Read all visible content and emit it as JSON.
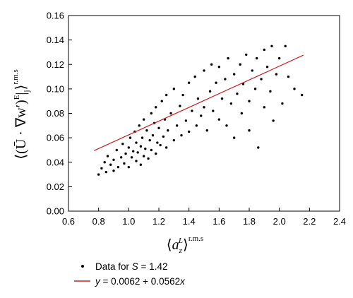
{
  "chart_data": {
    "type": "scatter",
    "title": "",
    "xlabel": "⟨a_z^L⟩ r.m.s",
    "ylabel": "⟨⟨(Ū · ∇w′)^E⟩|_j⟩ r.m.s",
    "xlim": [
      0.6,
      2.4
    ],
    "ylim": [
      0.0,
      0.16
    ],
    "x_ticks": [
      "0.6",
      "0.8",
      "1.0",
      "1.2",
      "1.4",
      "1.6",
      "1.8",
      "2.0",
      "2.2",
      "2.4"
    ],
    "y_ticks": [
      "0.00",
      "0.02",
      "0.04",
      "0.06",
      "0.08",
      "0.10",
      "0.12",
      "0.14",
      "0.16"
    ],
    "grid": false,
    "legend_position": "below-left",
    "series": [
      {
        "name": "Data for S = 1.42",
        "kind": "scatter",
        "color": "#000000",
        "points": [
          [
            0.8,
            0.03
          ],
          [
            0.82,
            0.035
          ],
          [
            0.84,
            0.04
          ],
          [
            0.85,
            0.032
          ],
          [
            0.86,
            0.045
          ],
          [
            0.88,
            0.038
          ],
          [
            0.9,
            0.042
          ],
          [
            0.9,
            0.033
          ],
          [
            0.92,
            0.05
          ],
          [
            0.93,
            0.036
          ],
          [
            0.95,
            0.044
          ],
          [
            0.96,
            0.055
          ],
          [
            0.97,
            0.039
          ],
          [
            0.98,
            0.047
          ],
          [
            1.0,
            0.052
          ],
          [
            1.0,
            0.036
          ],
          [
            1.01,
            0.06
          ],
          [
            1.02,
            0.044
          ],
          [
            1.03,
            0.049
          ],
          [
            1.04,
            0.065
          ],
          [
            1.05,
            0.041
          ],
          [
            1.05,
            0.056
          ],
          [
            1.06,
            0.048
          ],
          [
            1.07,
            0.07
          ],
          [
            1.08,
            0.053
          ],
          [
            1.08,
            0.038
          ],
          [
            1.09,
            0.06
          ],
          [
            1.1,
            0.045
          ],
          [
            1.1,
            0.075
          ],
          [
            1.11,
            0.051
          ],
          [
            1.12,
            0.066
          ],
          [
            1.13,
            0.043
          ],
          [
            1.14,
            0.058
          ],
          [
            1.15,
            0.08
          ],
          [
            1.15,
            0.05
          ],
          [
            1.16,
            0.062
          ],
          [
            1.17,
            0.072
          ],
          [
            1.18,
            0.047
          ],
          [
            1.18,
            0.085
          ],
          [
            1.19,
            0.056
          ],
          [
            1.2,
            0.068
          ],
          [
            1.21,
            0.054
          ],
          [
            1.22,
            0.09
          ],
          [
            1.23,
            0.061
          ],
          [
            1.24,
            0.075
          ],
          [
            1.25,
            0.052
          ],
          [
            1.25,
            0.095
          ],
          [
            1.26,
            0.066
          ],
          [
            1.28,
            0.08
          ],
          [
            1.3,
            0.058
          ],
          [
            1.3,
            0.1
          ],
          [
            1.32,
            0.07
          ],
          [
            1.34,
            0.086
          ],
          [
            1.35,
            0.062
          ],
          [
            1.36,
            0.095
          ],
          [
            1.38,
            0.074
          ],
          [
            1.4,
            0.105
          ],
          [
            1.4,
            0.065
          ],
          [
            1.42,
            0.082
          ],
          [
            1.44,
            0.11
          ],
          [
            1.45,
            0.07
          ],
          [
            1.46,
            0.092
          ],
          [
            1.48,
            0.078
          ],
          [
            1.5,
            0.115
          ],
          [
            1.5,
            0.085
          ],
          [
            1.52,
            0.066
          ],
          [
            1.54,
            0.098
          ],
          [
            1.55,
            0.12
          ],
          [
            1.56,
            0.082
          ],
          [
            1.58,
            0.105
          ],
          [
            1.6,
            0.075
          ],
          [
            1.6,
            0.118
          ],
          [
            1.62,
            0.092
          ],
          [
            1.64,
            0.108
          ],
          [
            1.65,
            0.07
          ],
          [
            1.66,
            0.125
          ],
          [
            1.68,
            0.088
          ],
          [
            1.7,
            0.112
          ],
          [
            1.7,
            0.06
          ],
          [
            1.72,
            0.096
          ],
          [
            1.74,
            0.12
          ],
          [
            1.75,
            0.08
          ],
          [
            1.76,
            0.104
          ],
          [
            1.78,
            0.128
          ],
          [
            1.8,
            0.09
          ],
          [
            1.8,
            0.066
          ],
          [
            1.82,
            0.115
          ],
          [
            1.84,
            0.1
          ],
          [
            1.85,
            0.125
          ],
          [
            1.86,
            0.052
          ],
          [
            1.88,
            0.108
          ],
          [
            1.9,
            0.132
          ],
          [
            1.9,
            0.085
          ],
          [
            1.92,
            0.118
          ],
          [
            1.94,
            0.098
          ],
          [
            1.95,
            0.135
          ],
          [
            1.96,
            0.074
          ],
          [
            1.98,
            0.112
          ],
          [
            2.0,
            0.125
          ],
          [
            2.02,
            0.088
          ],
          [
            2.04,
            0.135
          ],
          [
            2.06,
            0.11
          ],
          [
            2.1,
            0.1
          ],
          [
            2.15,
            0.095
          ]
        ]
      },
      {
        "name": "y = 0.0062 + 0.0562x",
        "kind": "line",
        "color": "#d11f1f",
        "intercept": 0.0062,
        "slope": 0.0562,
        "x_range": [
          0.77,
          2.16
        ]
      }
    ]
  }
}
